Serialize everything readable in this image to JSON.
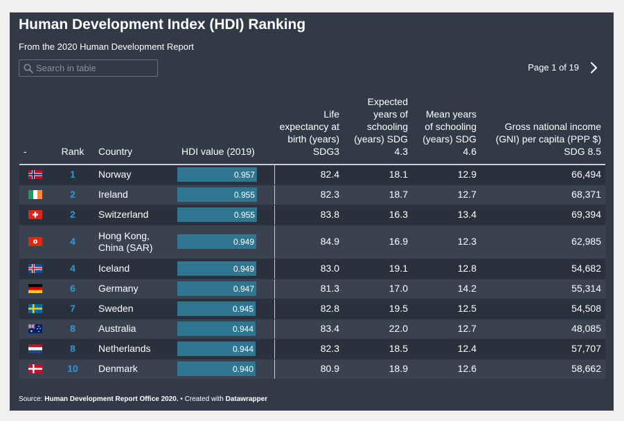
{
  "header": {
    "title": "Human Development Index (HDI) Ranking",
    "subtitle": "From the 2020 Human Development Report"
  },
  "search": {
    "placeholder": "Search in table",
    "value": ""
  },
  "pagination": {
    "label": "Page 1 of 19"
  },
  "icons": {
    "search": "search-icon",
    "next": "chevron-right-icon"
  },
  "colors": {
    "background": "#323a48",
    "row_odd": "#2a313d",
    "row_even": "#3a4252",
    "hdi_bar": "#2f7791",
    "rank": "#2d9bd1"
  },
  "footer": {
    "source_prefix": "Source: ",
    "source_name": "Human Development Report Office 2020.",
    "created_prefix": " • Created with ",
    "created_with": "Datawrapper"
  },
  "chart_data": {
    "type": "table",
    "columns": [
      "-",
      "Rank",
      "Country",
      "HDI value (2019)",
      "Life expectancy at birth (years) SDG3",
      "Expected years of schooling (years) SDG 4.3",
      "Mean years of schooling (years) SDG 4.6",
      "Gross national income (GNI) per capita (PPP $) SDG 8.5"
    ],
    "hdi_scale": [
      0,
      1
    ],
    "rows": [
      {
        "flag": "norway-flag-icon",
        "rank": "1",
        "country": "Norway",
        "hdi": "0.957",
        "life": "82.4",
        "expected": "18.1",
        "mean": "12.9",
        "gni": "66,494"
      },
      {
        "flag": "ireland-flag-icon",
        "rank": "2",
        "country": "Ireland",
        "hdi": "0.955",
        "life": "82.3",
        "expected": "18.7",
        "mean": "12.7",
        "gni": "68,371"
      },
      {
        "flag": "switzerland-flag-icon",
        "rank": "2",
        "country": "Switzerland",
        "hdi": "0.955",
        "life": "83.8",
        "expected": "16.3",
        "mean": "13.4",
        "gni": "69,394"
      },
      {
        "flag": "hong-kong-flag-icon",
        "rank": "4",
        "country": "Hong Kong, China (SAR)",
        "hdi": "0.949",
        "life": "84.9",
        "expected": "16.9",
        "mean": "12.3",
        "gni": "62,985"
      },
      {
        "flag": "iceland-flag-icon",
        "rank": "4",
        "country": "Iceland",
        "hdi": "0.949",
        "life": "83.0",
        "expected": "19.1",
        "mean": "12.8",
        "gni": "54,682"
      },
      {
        "flag": "germany-flag-icon",
        "rank": "6",
        "country": "Germany",
        "hdi": "0.947",
        "life": "81.3",
        "expected": "17.0",
        "mean": "14.2",
        "gni": "55,314"
      },
      {
        "flag": "sweden-flag-icon",
        "rank": "7",
        "country": "Sweden",
        "hdi": "0.945",
        "life": "82.8",
        "expected": "19.5",
        "mean": "12.5",
        "gni": "54,508"
      },
      {
        "flag": "australia-flag-icon",
        "rank": "8",
        "country": "Australia",
        "hdi": "0.944",
        "life": "83.4",
        "expected": "22.0",
        "mean": "12.7",
        "gni": "48,085"
      },
      {
        "flag": "netherlands-flag-icon",
        "rank": "8",
        "country": "Netherlands",
        "hdi": "0.944",
        "life": "82.3",
        "expected": "18.5",
        "mean": "12.4",
        "gni": "57,707"
      },
      {
        "flag": "denmark-flag-icon",
        "rank": "10",
        "country": "Denmark",
        "hdi": "0.940",
        "life": "80.9",
        "expected": "18.9",
        "mean": "12.6",
        "gni": "58,662"
      }
    ]
  }
}
